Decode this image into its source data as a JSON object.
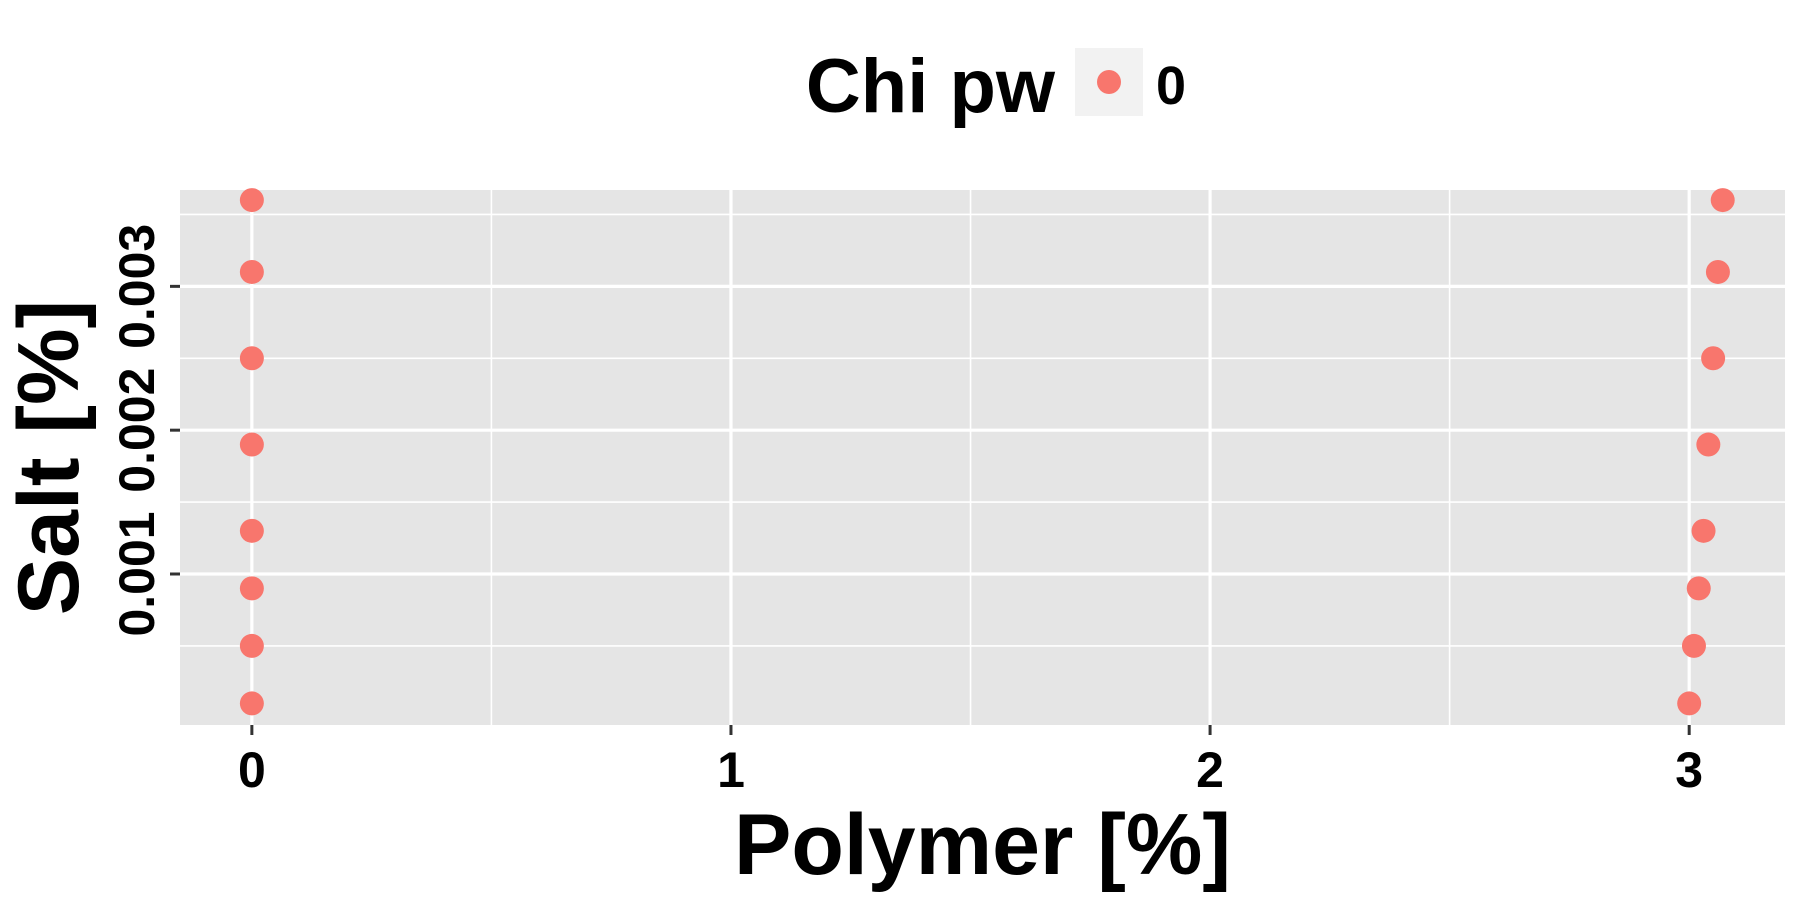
{
  "chart_data": {
    "type": "scatter",
    "title": "",
    "xlabel": "Polymer [%]",
    "ylabel": "Salt [%]",
    "xlim": [
      -0.15,
      3.2
    ],
    "ylim": [
      -5e-05,
      0.00367
    ],
    "x_ticks": [
      0,
      1,
      2,
      3
    ],
    "x_tick_labels": [
      "0",
      "1",
      "2",
      "3"
    ],
    "y_ticks": [
      0.001,
      0.002,
      0.003
    ],
    "y_tick_labels": [
      "0.001",
      "0.002",
      "0.003"
    ],
    "grid": true,
    "legend": {
      "title": "Chi pw",
      "position": "top",
      "entries": [
        {
          "label": "0",
          "color": "#F8766D"
        }
      ]
    },
    "series": [
      {
        "name": "0",
        "color": "#F8766D",
        "x": [
          0,
          0,
          0,
          0,
          0,
          0,
          0,
          0,
          3.0,
          3.01,
          3.02,
          3.03,
          3.04,
          3.05,
          3.06,
          3.07
        ],
        "y": [
          0.0001,
          0.0005,
          0.0009,
          0.0013,
          0.0019,
          0.0025,
          0.0031,
          0.0036,
          0.0001,
          0.0005,
          0.0009,
          0.0013,
          0.0019,
          0.0025,
          0.0031,
          0.0036
        ]
      }
    ],
    "colors": {
      "panel_background": "#E5E5E5",
      "grid": "#FFFFFF",
      "point": "#F8766D",
      "legend_key_background": "#F2F2F2"
    }
  }
}
